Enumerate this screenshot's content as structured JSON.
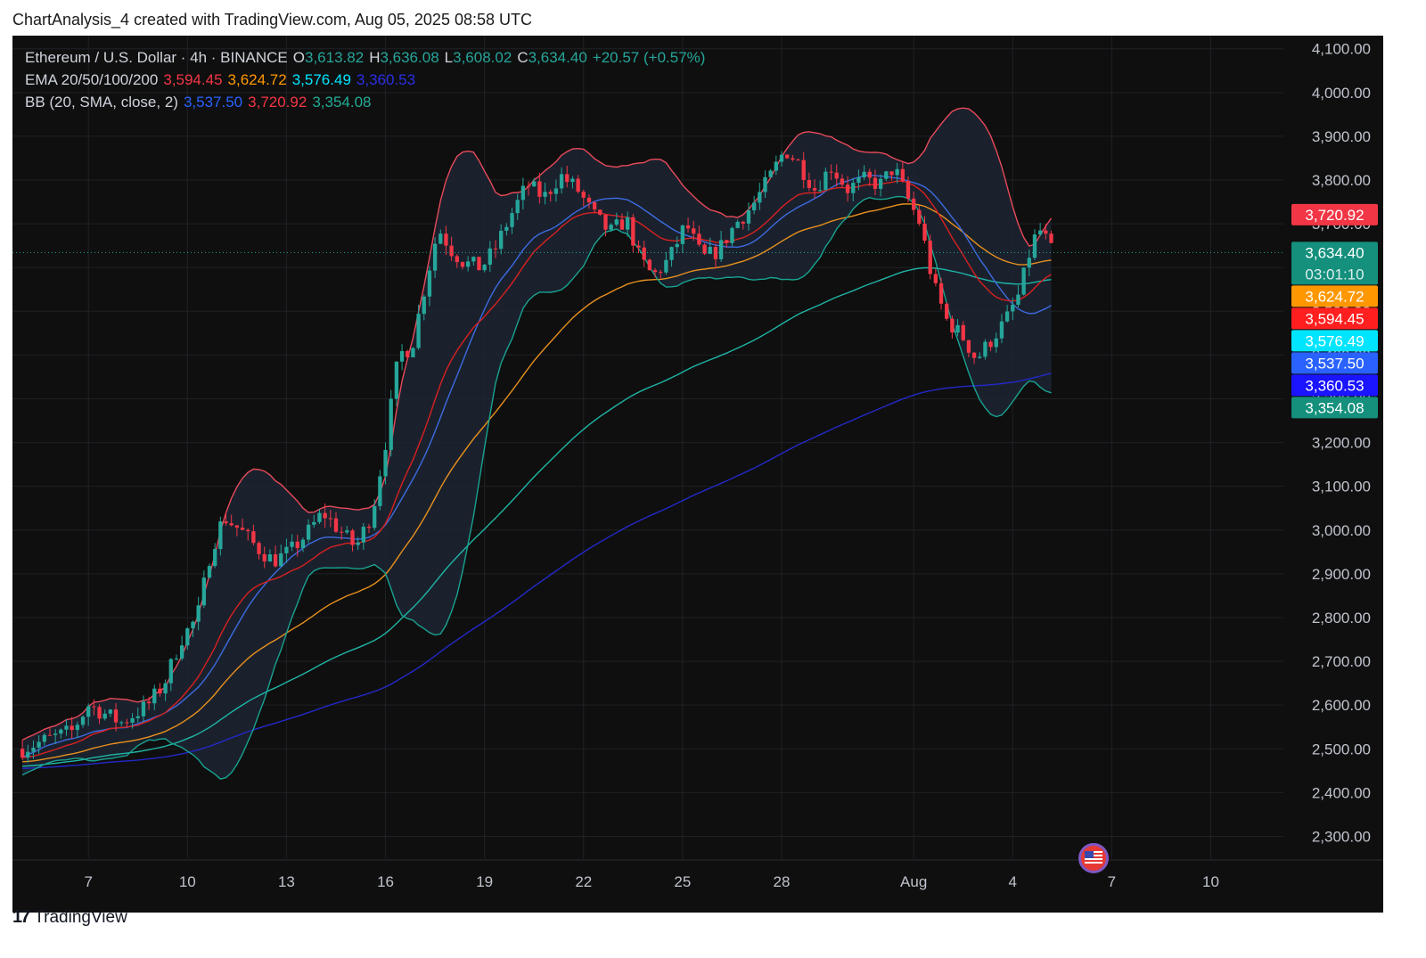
{
  "caption": "ChartAnalysis_4 created with TradingView.com, Aug 05, 2025 08:58 UTC",
  "footer_brand": "TradingView",
  "legend": {
    "symbol": "Ethereum / U.S. Dollar · 4h · BINANCE",
    "o_label": "O",
    "o": "3,613.82",
    "h_label": "H",
    "h": "3,636.08",
    "l_label": "L",
    "l": "3,608.02",
    "c_label": "C",
    "c": "3,634.40",
    "change": "+20.57 (+0.57%)",
    "ema_label": "EMA 20/50/100/200",
    "ema20": "3,594.45",
    "ema50": "3,624.72",
    "ema100": "3,576.49",
    "ema200": "3,360.53",
    "bb_label": "BB (20, SMA, close, 2)",
    "bb_basis": "3,537.50",
    "bb_upper": "3,720.92",
    "bb_lower": "3,354.08"
  },
  "colors": {
    "background": "#0f0f0f",
    "grid": "#1f2126",
    "up_candle": "#26a69a",
    "down_candle": "#f23645",
    "ema20": "#d92020",
    "ema50": "#e8901e",
    "ema100": "#1fb5a6",
    "ema200": "#2329c9",
    "bb_basis": "#3d6be0",
    "bb_upper": "#e84a5a",
    "bb_lower": "#19a391",
    "bb_fill": "#1c2433"
  },
  "chart_data": {
    "type": "candlestick",
    "symbol": "Ethereum / U.S. Dollar",
    "interval": "4h",
    "exchange": "BINANCE",
    "y_ticks": [
      "4,100.00",
      "4,000.00",
      "3,900.00",
      "3,800.00",
      "3,700.00",
      "3,600.00",
      "3,500.00",
      "3,400.00",
      "3,300.00",
      "3,200.00",
      "3,100.00",
      "3,000.00",
      "2,900.00",
      "2,800.00",
      "2,700.00",
      "2,600.00",
      "2,500.00",
      "2,400.00",
      "2,300.00"
    ],
    "ylim": [
      2250,
      4130
    ],
    "x_ticks": [
      {
        "label": "7",
        "day": 7
      },
      {
        "label": "10",
        "day": 10
      },
      {
        "label": "13",
        "day": 13
      },
      {
        "label": "16",
        "day": 16
      },
      {
        "label": "19",
        "day": 19
      },
      {
        "label": "22",
        "day": 22
      },
      {
        "label": "25",
        "day": 25
      },
      {
        "label": "28",
        "day": 28
      },
      {
        "label": "Aug",
        "day": 32
      },
      {
        "label": "4",
        "day": 35
      },
      {
        "label": "7",
        "day": 38
      },
      {
        "label": "10",
        "day": 41
      }
    ],
    "xlim": [
      4.7,
      43.2
    ],
    "last_price": 3634.4,
    "last_price_label": "3,634.40",
    "countdown": "03:01:10",
    "price_tags": [
      {
        "label": "3,720.92",
        "value": 3720.92,
        "color": "#f23645"
      },
      {
        "label": "3,624.72",
        "value": 3624.72,
        "color": "#ff9800"
      },
      {
        "label": "3,594.45",
        "value": 3594.45,
        "color": "#ff1f1f"
      },
      {
        "label": "3,576.49",
        "value": 3576.49,
        "color": "#00e5ff"
      },
      {
        "label": "3,537.50",
        "value": 3537.5,
        "color": "#2962ff"
      },
      {
        "label": "3,360.53",
        "value": 3360.53,
        "color": "#1a14ff"
      },
      {
        "label": "3,354.08",
        "value": 3354.08,
        "color": "#14907d"
      }
    ],
    "trend_points": [
      [
        5.0,
        2500
      ],
      [
        5.7,
        2520
      ],
      [
        6.5,
        2540
      ],
      [
        7.0,
        2600
      ],
      [
        7.5,
        2580
      ],
      [
        8.0,
        2560
      ],
      [
        8.8,
        2600
      ],
      [
        9.3,
        2650
      ],
      [
        9.8,
        2750
      ],
      [
        10.3,
        2800
      ],
      [
        10.7,
        2950
      ],
      [
        11.1,
        3030
      ],
      [
        11.6,
        3000
      ],
      [
        12.1,
        2960
      ],
      [
        12.6,
        2930
      ],
      [
        13.1,
        2950
      ],
      [
        13.6,
        2990
      ],
      [
        14.1,
        3040
      ],
      [
        14.6,
        3000
      ],
      [
        15.1,
        2960
      ],
      [
        15.6,
        3040
      ],
      [
        16.0,
        3200
      ],
      [
        16.4,
        3400
      ],
      [
        16.8,
        3420
      ],
      [
        17.2,
        3560
      ],
      [
        17.6,
        3690
      ],
      [
        18.0,
        3640
      ],
      [
        18.4,
        3610
      ],
      [
        18.9,
        3600
      ],
      [
        19.3,
        3640
      ],
      [
        19.8,
        3720
      ],
      [
        20.3,
        3790
      ],
      [
        20.8,
        3760
      ],
      [
        21.3,
        3810
      ],
      [
        21.8,
        3780
      ],
      [
        22.3,
        3720
      ],
      [
        22.8,
        3680
      ],
      [
        23.3,
        3710
      ],
      [
        23.7,
        3620
      ],
      [
        24.1,
        3580
      ],
      [
        24.6,
        3620
      ],
      [
        25.1,
        3700
      ],
      [
        25.6,
        3620
      ],
      [
        26.1,
        3640
      ],
      [
        26.6,
        3700
      ],
      [
        27.1,
        3740
      ],
      [
        27.6,
        3800
      ],
      [
        28.1,
        3870
      ],
      [
        28.5,
        3840
      ],
      [
        29.0,
        3780
      ],
      [
        29.5,
        3830
      ],
      [
        30.0,
        3780
      ],
      [
        30.5,
        3800
      ],
      [
        31.0,
        3790
      ],
      [
        31.4,
        3830
      ],
      [
        31.8,
        3760
      ],
      [
        32.2,
        3700
      ],
      [
        32.6,
        3560
      ],
      [
        33.0,
        3480
      ],
      [
        33.5,
        3440
      ],
      [
        33.9,
        3390
      ],
      [
        34.3,
        3430
      ],
      [
        34.8,
        3480
      ],
      [
        35.2,
        3540
      ],
      [
        35.6,
        3660
      ],
      [
        35.9,
        3690
      ],
      [
        36.1,
        3640
      ],
      [
        36.3,
        3634
      ]
    ],
    "candle_style": {
      "up": "#26a69a",
      "down": "#f23645"
    }
  }
}
